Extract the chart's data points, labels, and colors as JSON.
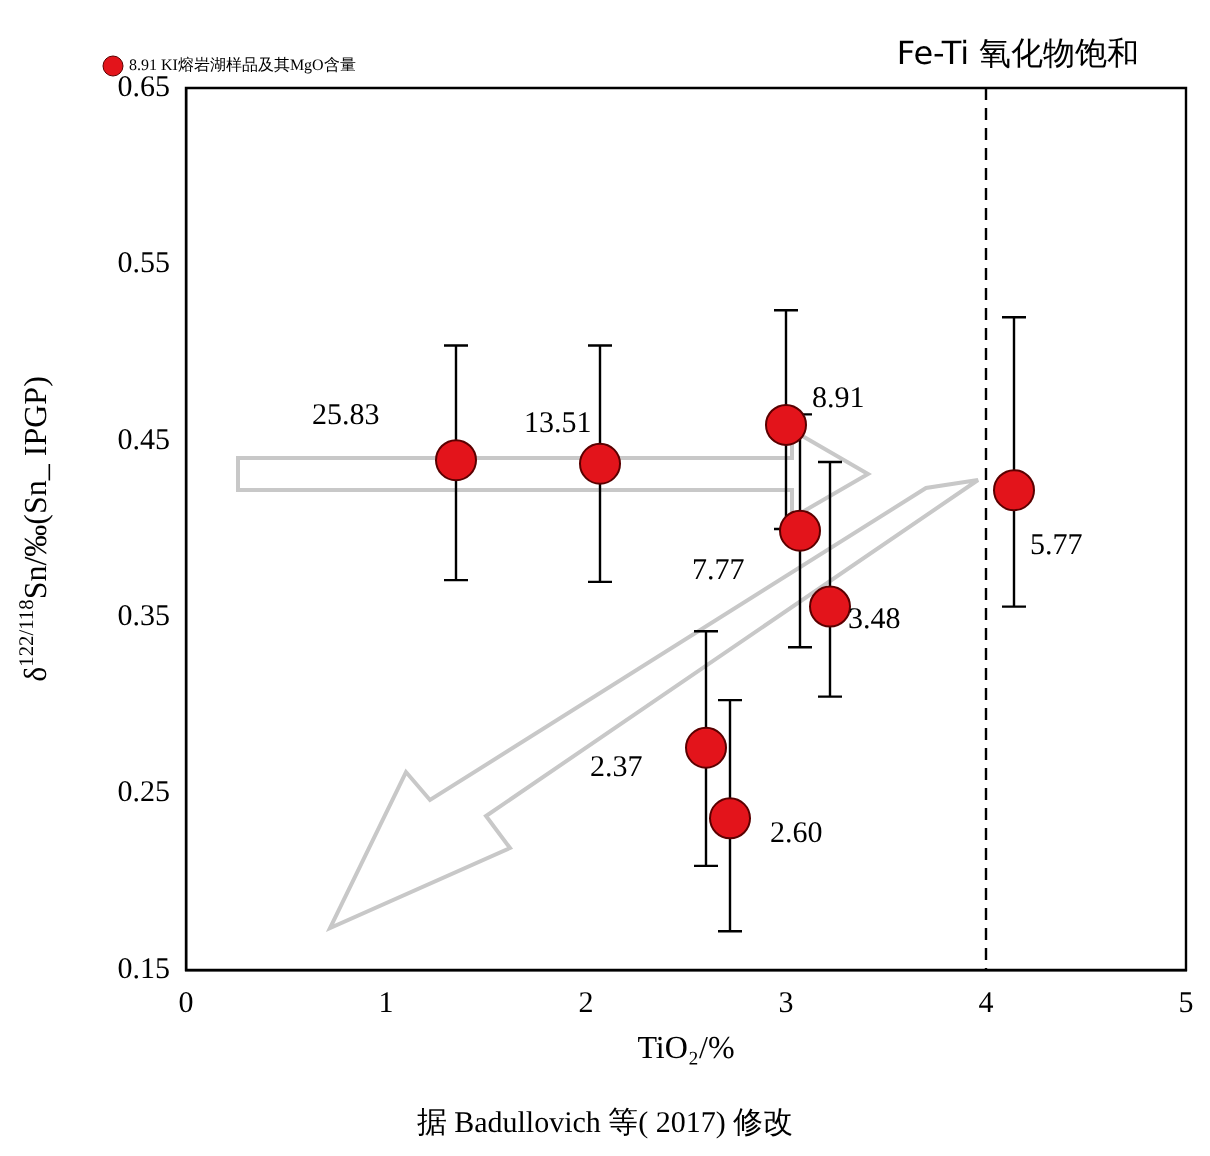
{
  "chart_data": {
    "type": "scatter",
    "xlabel": "TiO₂/%",
    "ylabel": "δ$^{122/118}$Sn/‰(Sn_ IPGP)",
    "xlim": [
      0,
      5
    ],
    "ylim": [
      0.15,
      0.65
    ],
    "xticks": [
      0,
      1,
      2,
      3,
      4,
      5
    ],
    "yticks": [
      0.15,
      0.25,
      0.35,
      0.45,
      0.55,
      0.65
    ],
    "grid": false,
    "legend": "top left",
    "marker": "circle",
    "series": [
      {
        "name": "8.91 KI熔岩湖样品及其MgO含量",
        "color": "#e3141b",
        "x": [
          1.35,
          2.07,
          3.0,
          3.07,
          3.22,
          2.6,
          2.72,
          4.14
        ],
        "values": [
          0.439,
          0.437,
          0.459,
          0.399,
          0.356,
          0.276,
          0.236,
          0.422
        ],
        "errors": [
          [
            0.371,
            0.504
          ],
          [
            0.37,
            0.504
          ],
          [
            0.4,
            0.524
          ],
          [
            0.333,
            0.465
          ],
          [
            0.305,
            0.438
          ],
          [
            0.209,
            0.342
          ],
          [
            0.172,
            0.303
          ],
          [
            0.356,
            0.52
          ]
        ]
      }
    ],
    "ref_lines": [
      {
        "axis": "x",
        "value": 4,
        "label": "Fe-Ti 氧化物饱和",
        "line_style": "dashed",
        "color": "#000000"
      }
    ],
    "annotations": [
      {
        "text": "25.83",
        "x": 1.35,
        "y": 0.439
      },
      {
        "text": "13.51",
        "x": 2.07,
        "y": 0.437
      },
      {
        "text": "8.91",
        "x": 3.0,
        "y": 0.459
      },
      {
        "text": "7.77",
        "x": 3.07,
        "y": 0.399
      },
      {
        "text": "3.48",
        "x": 3.22,
        "y": 0.356
      },
      {
        "text": "2.37",
        "x": 2.6,
        "y": 0.276
      },
      {
        "text": "2.60",
        "x": 2.72,
        "y": 0.236
      },
      {
        "text": "5.77",
        "x": 4.14,
        "y": 0.422
      },
      "据 Badullovich 等( 2017) 修改"
    ]
  }
}
